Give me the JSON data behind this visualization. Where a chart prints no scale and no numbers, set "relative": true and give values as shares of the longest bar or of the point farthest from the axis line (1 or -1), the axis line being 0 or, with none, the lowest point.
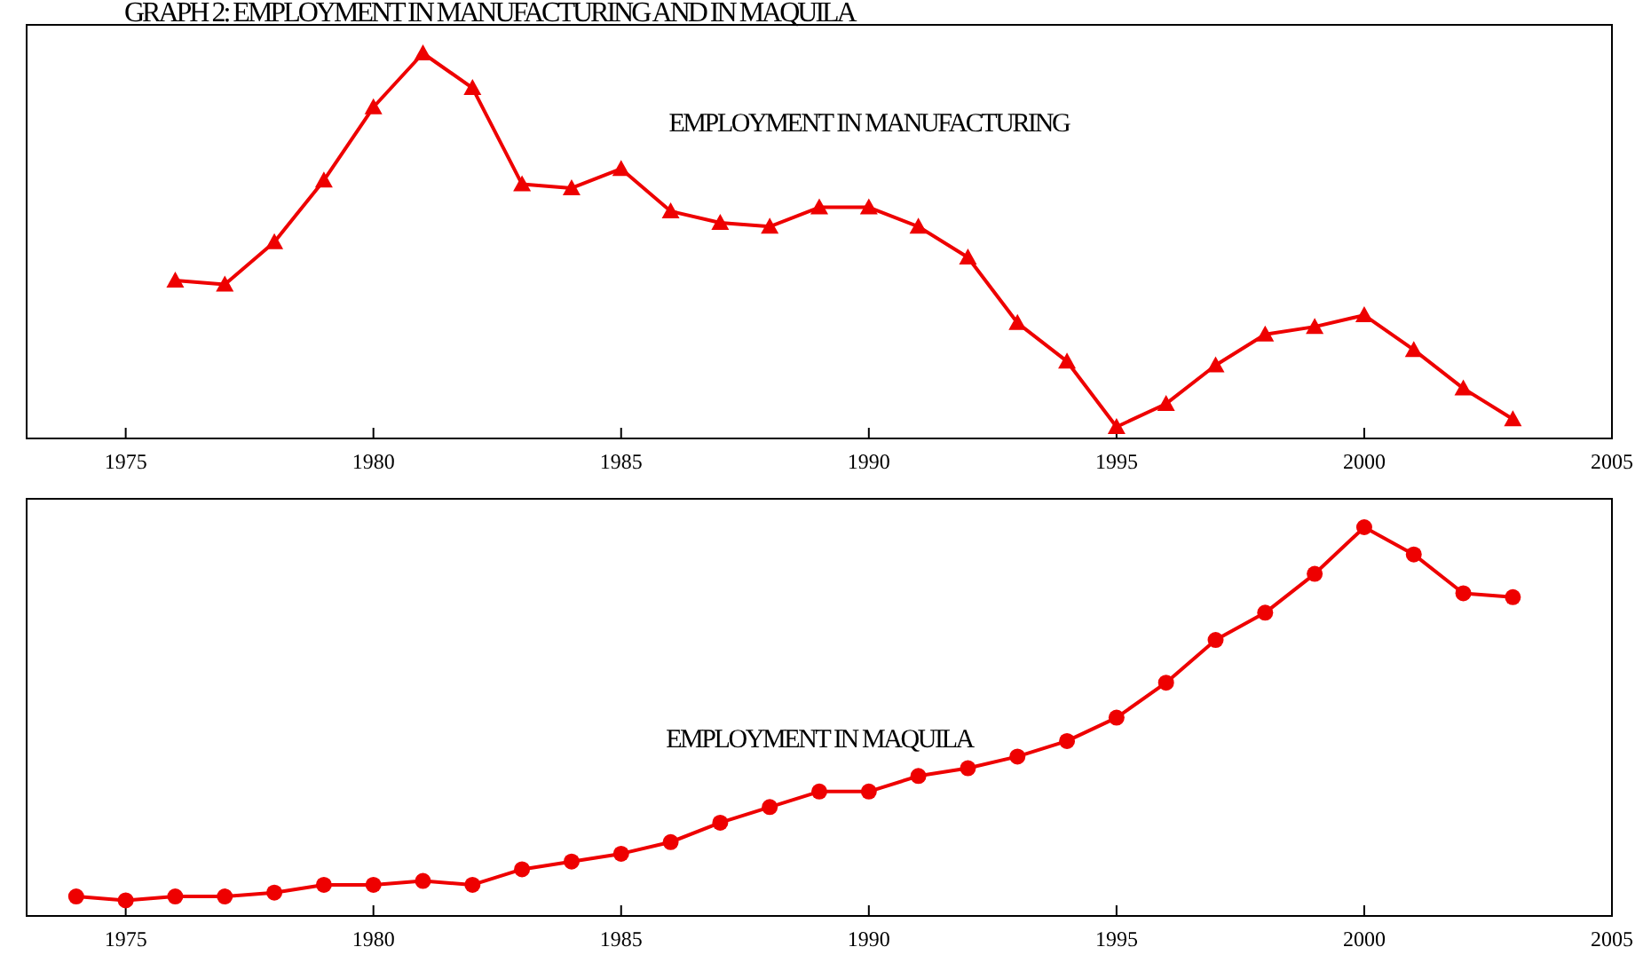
{
  "chart_data": [
    {
      "type": "line",
      "title": "GRAPH 2: EMPLOYMENT IN MANUFACTURING AND IN MAQUILA",
      "relative": true,
      "xlim": [
        1973,
        2005
      ],
      "xticks": [
        1975,
        1980,
        1985,
        1990,
        1995,
        2000,
        2005
      ],
      "marker": "triangle",
      "series": [
        {
          "name": "EMPLOYMENT IN MANUFACTURING",
          "color": "#ee0000",
          "x": [
            1976,
            1977,
            1978,
            1979,
            1980,
            1981,
            1982,
            1983,
            1984,
            1985,
            1986,
            1987,
            1988,
            1989,
            1990,
            1991,
            1992,
            1993,
            1994,
            1995,
            1996,
            1997,
            1998,
            1999,
            2000,
            2001,
            2002,
            2003
          ],
          "values": [
            0.41,
            0.4,
            0.51,
            0.67,
            0.86,
            1,
            0.91,
            0.66,
            0.65,
            0.7,
            0.59,
            0.56,
            0.55,
            0.6,
            0.6,
            0.55,
            0.47,
            0.3,
            0.2,
            0.03,
            0.09,
            0.19,
            0.27,
            0.29,
            0.32,
            0.23,
            0.13,
            0.05
          ]
        }
      ]
    },
    {
      "type": "line",
      "relative": true,
      "xlim": [
        1973,
        2005
      ],
      "xticks": [
        1975,
        1980,
        1985,
        1990,
        1995,
        2000,
        2005
      ],
      "marker": "circle",
      "series": [
        {
          "name": "EMPLOYMENT IN MAQUILA",
          "color": "#ee0000",
          "x": [
            1974,
            1975,
            1976,
            1977,
            1978,
            1979,
            1980,
            1981,
            1982,
            1983,
            1984,
            1985,
            1986,
            1987,
            1988,
            1989,
            1990,
            1991,
            1992,
            1993,
            1994,
            1995,
            1996,
            1997,
            1998,
            1999,
            2000,
            2001,
            2002,
            2003
          ],
          "values": [
            0.05,
            0.04,
            0.05,
            0.05,
            0.06,
            0.08,
            0.08,
            0.09,
            0.08,
            0.12,
            0.14,
            0.16,
            0.19,
            0.24,
            0.28,
            0.32,
            0.32,
            0.36,
            0.38,
            0.41,
            0.45,
            0.51,
            0.6,
            0.71,
            0.78,
            0.88,
            1,
            0.93,
            0.83,
            0.82
          ]
        }
      ]
    }
  ]
}
